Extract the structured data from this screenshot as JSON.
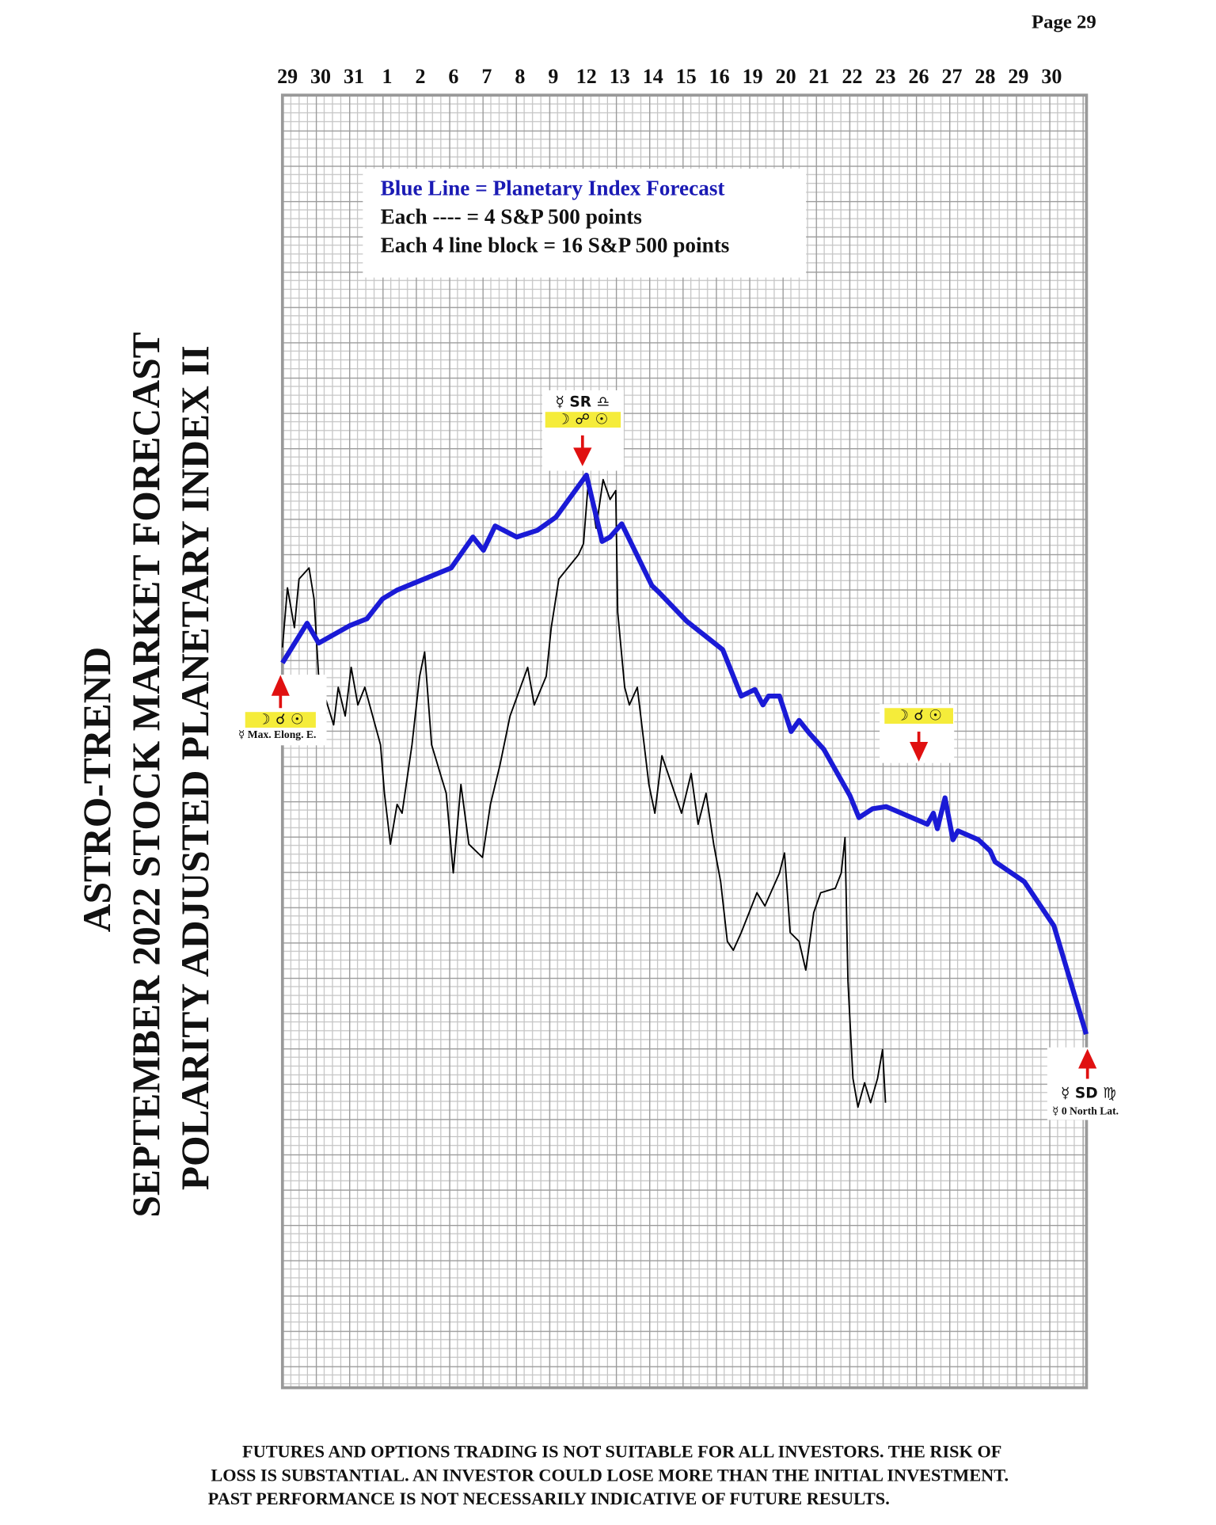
{
  "page_label": "Page  29",
  "title_lines": [
    "ASTRO-TREND",
    "SEPTEMBER 2022  STOCK MARKET FORECAST",
    "POLARITY ADJUSTED PLANETARY INDEX II"
  ],
  "chart_data": {
    "type": "line",
    "categories": [
      "29",
      "30",
      "31",
      "1",
      "2",
      "6",
      "7",
      "8",
      "9",
      "12",
      "13",
      "14",
      "15",
      "16",
      "19",
      "20",
      "21",
      "22",
      "23",
      "26",
      "27",
      "28",
      "29",
      "30"
    ],
    "xlim": [
      -0.15,
      24.05
    ],
    "ylim": [
      0,
      585
    ],
    "grid": true,
    "legend": [
      "Blue Line = Planetary Index Forecast",
      "Each ---- =   4 S&P 500 points",
      "Each 4 line block =  16  S&P 500 points"
    ],
    "series": [
      {
        "color": "#1a1ad6",
        "x": [
          -0.15,
          0.59,
          0.94,
          1.89,
          2.39,
          2.86,
          3.3,
          4.93,
          5.58,
          5.9,
          6.25,
          6.9,
          7.52,
          8.08,
          9.0,
          9.47,
          9.71,
          10.06,
          10.97,
          11.18,
          12.01,
          13.1,
          13.66,
          14.07,
          14.31,
          14.48,
          14.81,
          15.16,
          15.4,
          15.72,
          16.14,
          16.93,
          17.2,
          17.61,
          18.02,
          19.26,
          19.44,
          19.56,
          19.79,
          20.03,
          20.18,
          20.8,
          21.15,
          21.3,
          22.18,
          23.07,
          24.04
        ],
        "values": [
          328,
          346,
          337,
          345,
          348,
          357,
          361,
          371,
          385,
          379,
          390,
          385,
          388,
          394,
          413,
          383,
          385,
          391,
          363,
          360,
          347,
          334,
          313,
          316,
          309,
          313,
          313,
          297,
          302,
          296,
          289,
          268,
          258,
          262,
          263,
          255,
          260,
          253,
          267,
          248,
          252,
          248,
          243,
          238,
          229,
          209,
          160
        ]
      },
      {
        "color": "#000000",
        "x": [
          -0.15,
          0.0,
          0.21,
          0.35,
          0.65,
          0.8,
          0.94,
          1.39,
          1.53,
          1.74,
          1.92,
          2.12,
          2.33,
          2.8,
          2.92,
          3.1,
          3.3,
          3.45,
          3.75,
          3.98,
          4.13,
          4.34,
          4.78,
          4.99,
          5.22,
          5.46,
          5.87,
          6.11,
          6.4,
          6.7,
          7.23,
          7.43,
          7.79,
          7.94,
          8.17,
          8.76,
          8.91,
          9.06,
          9.29,
          9.5,
          9.71,
          9.88,
          9.94,
          10.15,
          10.29,
          10.53,
          10.88,
          11.06,
          11.27,
          11.86,
          12.15,
          12.36,
          12.6,
          12.83,
          13.04,
          13.24,
          13.42,
          13.66,
          14.13,
          14.37,
          14.81,
          14.96,
          15.13,
          15.4,
          15.6,
          15.84,
          16.05,
          16.49,
          16.67,
          16.78,
          16.87,
          17.02,
          17.17,
          17.37,
          17.55,
          17.76,
          17.91,
          18.0
        ],
        "values": [
          335,
          362,
          344,
          366,
          371,
          357,
          322,
          300,
          317,
          304,
          326,
          309,
          317,
          291,
          269,
          246,
          264,
          260,
          291,
          322,
          333,
          291,
          269,
          233,
          273,
          246,
          240,
          264,
          282,
          304,
          326,
          309,
          322,
          344,
          366,
          377,
          382,
          411,
          389,
          411,
          402,
          406,
          351,
          317,
          309,
          317,
          273,
          260,
          286,
          260,
          278,
          255,
          269,
          246,
          229,
          202,
          198,
          206,
          224,
          218,
          233,
          242,
          206,
          202,
          189,
          215,
          224,
          226,
          233,
          249,
          184,
          140,
          127,
          138,
          129,
          140,
          153,
          129
        ]
      }
    ],
    "annotations": [
      {
        "lines": [
          "☿  SR  ♎",
          "☽ ☍ ☉"
        ]
      },
      {
        "lines": [
          "☽ ☌ ☉",
          "☿ Max. Elong. E."
        ]
      },
      {
        "lines": [
          "☽ ☌ ☉"
        ]
      },
      {
        "lines": [
          "☿  SD  ♍",
          "☿ 0 North Lat."
        ]
      }
    ]
  },
  "disclaimer": [
    "FUTURES AND OPTIONS TRADING IS NOT SUITABLE FOR ALL INVESTORS.  THE RISK OF",
    "LOSS IS SUBSTANTIAL.  AN INVESTOR COULD LOSE MORE THAN THE INITIAL INVESTMENT.",
    "PAST PERFORMANCE IS NOT NECESSARILY INDICATIVE OF FUTURE RESULTS."
  ]
}
